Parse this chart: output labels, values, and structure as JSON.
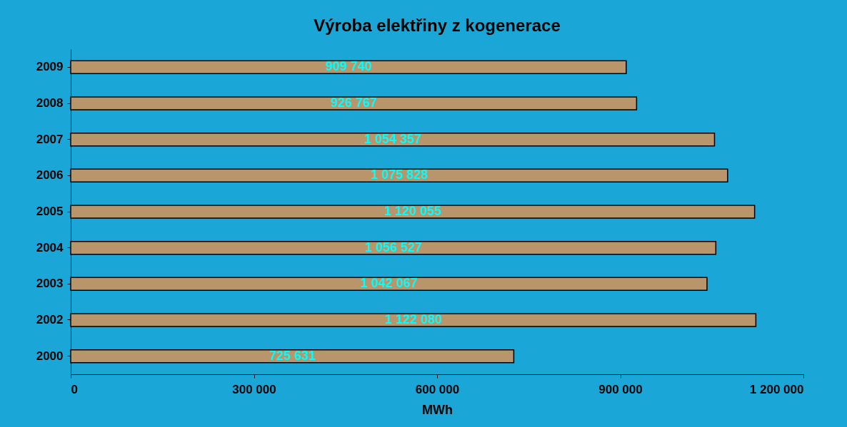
{
  "chart_data": {
    "type": "bar",
    "orientation": "horizontal",
    "title": "Výroba elektřiny z kogenerace",
    "xlabel": "MWh",
    "categories": [
      "2009",
      "2008",
      "2007",
      "2006",
      "2005",
      "2004",
      "2003",
      "2002",
      "2000"
    ],
    "values": [
      909740,
      926767,
      1054357,
      1075828,
      1120055,
      1056527,
      1042067,
      1122080,
      725631
    ],
    "value_labels": [
      "909 740",
      "926 767",
      "1 054 357",
      "1 075 828",
      "1 120 055",
      "1 056 527",
      "1 042 067",
      "1 122 080",
      "725 631"
    ],
    "color": "#b8956a",
    "xlim": [
      0,
      1200000
    ],
    "xticks": [
      0,
      {
        "value": 300000,
        "label": "300 000"
      },
      {
        "value": 600000,
        "label": "600 000"
      },
      {
        "value": 900000,
        "label": "900 000"
      },
      {
        "value": 1200000,
        "label": "1 200 000"
      }
    ],
    "grid": false
  }
}
